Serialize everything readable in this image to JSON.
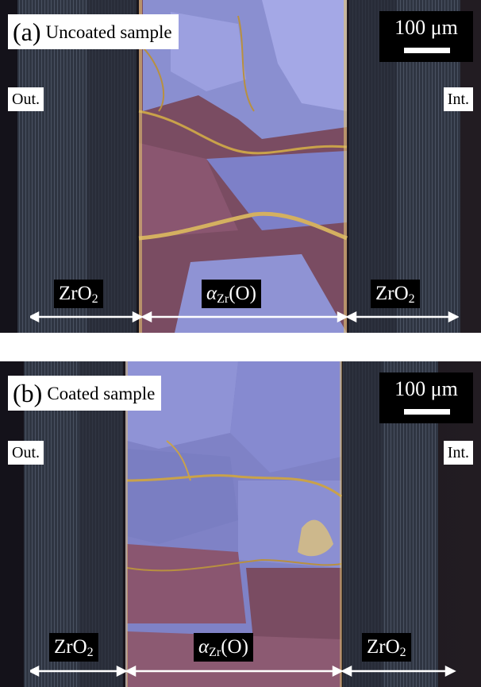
{
  "panels": [
    {
      "letter": "(a)",
      "title": "Uncoated sample",
      "scale": "100 μm",
      "out_label": "Out.",
      "int_label": "Int.",
      "zones": [
        {
          "base": "ZrO",
          "sub": "2",
          "suffix": ""
        },
        {
          "base": "α",
          "sub": "Zr",
          "suffix": "(O)"
        },
        {
          "base": "ZrO",
          "sub": "2",
          "suffix": ""
        }
      ]
    },
    {
      "letter": "(b)",
      "title": "Coated sample",
      "scale": "100 μm",
      "out_label": "Out.",
      "int_label": "Int.",
      "zones": [
        {
          "base": "ZrO",
          "sub": "2",
          "suffix": ""
        },
        {
          "base": "α",
          "sub": "Zr",
          "suffix": "(O)"
        },
        {
          "base": "ZrO",
          "sub": "2",
          "suffix": ""
        }
      ]
    }
  ],
  "colors": {
    "oxide": "#2e3440",
    "grain_blue": "#7b7fc4",
    "grain_pink": "#8a5670",
    "crack_gold": "#c9a24a"
  }
}
